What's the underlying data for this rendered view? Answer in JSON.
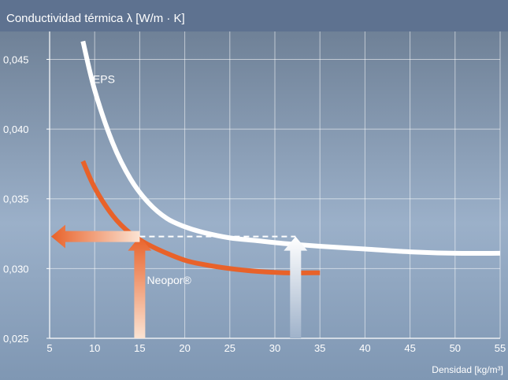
{
  "chart_data": {
    "type": "line",
    "title": "Conductividad térmica λ [W/m · K]",
    "xlabel": "Densidad [kg/m³]",
    "ylabel": "",
    "xlim": [
      5,
      55
    ],
    "ylim": [
      0.025,
      0.047
    ],
    "x_ticks": [
      5,
      10,
      15,
      20,
      25,
      30,
      35,
      40,
      45,
      50,
      55
    ],
    "x_tick_labels": [
      "5",
      "10",
      "15",
      "20",
      "25",
      "30",
      "35",
      "40",
      "45",
      "50",
      "55"
    ],
    "y_ticks": [
      0.025,
      0.03,
      0.035,
      0.04,
      0.045
    ],
    "y_tick_labels": [
      "0,025",
      "0,030",
      "0,035",
      "0,040",
      "0,045"
    ],
    "grid": true,
    "series": [
      {
        "name": "EPS",
        "color": "#ffffff",
        "x": [
          8.7,
          10,
          12,
          14,
          16,
          18,
          20,
          22,
          25,
          28,
          31,
          35,
          40,
          45,
          50,
          55
        ],
        "y": [
          0.0463,
          0.0428,
          0.039,
          0.0364,
          0.0347,
          0.0336,
          0.033,
          0.0326,
          0.0322,
          0.032,
          0.0318,
          0.0316,
          0.0314,
          0.0312,
          0.0311,
          0.0311
        ]
      },
      {
        "name": "Neopor®",
        "color": "#e8622a",
        "x": [
          8.7,
          10,
          12,
          14,
          16,
          18,
          20,
          22,
          25,
          28,
          31,
          35
        ],
        "y": [
          0.0377,
          0.0358,
          0.0338,
          0.0325,
          0.0317,
          0.0311,
          0.0306,
          0.0303,
          0.03,
          0.0298,
          0.0297,
          0.0297
        ]
      }
    ],
    "annotations": {
      "neopor_arrow_x": 15,
      "neopor_arrow_y": 0.0323,
      "eps_arrow_x": 32.3,
      "eps_arrow_y": 0.0323,
      "orange_color": "#e8622a",
      "light_color": "#ffffff"
    }
  }
}
